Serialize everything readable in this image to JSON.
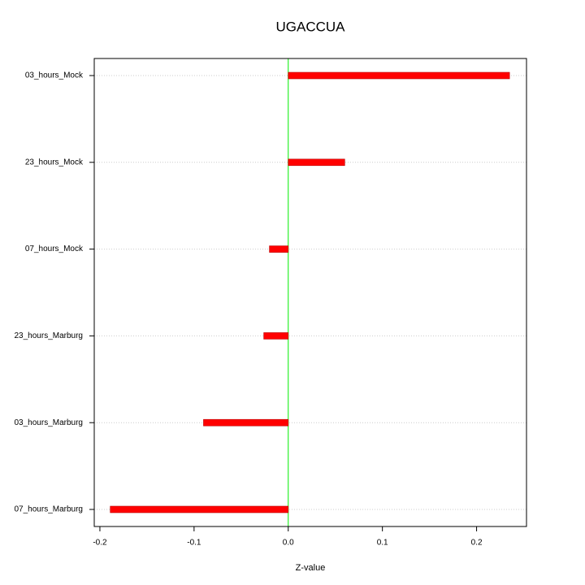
{
  "chart_data": {
    "type": "hbar",
    "title": "UGACCUA",
    "x_label": "Z-value",
    "categories": [
      "03_hours_Mock",
      "23_hours_Mock",
      "07_hours_Mock",
      "23_hours_Marburg",
      "03_hours_Marburg",
      "07_hours_Marburg"
    ],
    "values": [
      0.235,
      0.06,
      -0.02,
      -0.026,
      -0.09,
      -0.189
    ],
    "color": "#ff0000",
    "zero_line_color": "#00ee00",
    "xlim": [
      -0.206,
      0.253
    ],
    "xticks": [
      -0.2,
      -0.1,
      {
        "value": 0,
        "label": "0.0"
      },
      0.1,
      0.2
    ],
    "grid": true
  }
}
